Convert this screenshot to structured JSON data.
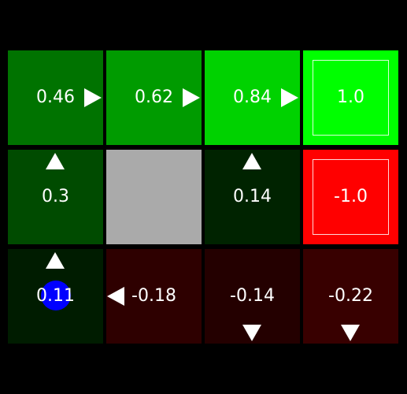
{
  "gridworld": {
    "rows": 3,
    "cols": 4,
    "agent": {
      "row": 2,
      "col": 0,
      "color": "#0000ff"
    },
    "cells": [
      {
        "row": 0,
        "col": 0,
        "value": "0.46",
        "policy": "right",
        "color": "#007300",
        "terminal": false,
        "wall": false
      },
      {
        "row": 0,
        "col": 1,
        "value": "0.62",
        "policy": "right",
        "color": "#009b00",
        "terminal": false,
        "wall": false
      },
      {
        "row": 0,
        "col": 2,
        "value": "0.84",
        "policy": "right",
        "color": "#00d200",
        "terminal": false,
        "wall": false
      },
      {
        "row": 0,
        "col": 3,
        "value": "1.0",
        "policy": null,
        "color": "#00ff00",
        "terminal": true,
        "wall": false
      },
      {
        "row": 1,
        "col": 0,
        "value": "0.3",
        "policy": "up",
        "color": "#004b00",
        "terminal": false,
        "wall": false
      },
      {
        "row": 1,
        "col": 1,
        "value": null,
        "policy": null,
        "color": "#aaaaaa",
        "terminal": false,
        "wall": true
      },
      {
        "row": 1,
        "col": 2,
        "value": "0.14",
        "policy": "up",
        "color": "#002300",
        "terminal": false,
        "wall": false
      },
      {
        "row": 1,
        "col": 3,
        "value": "-1.0",
        "policy": null,
        "color": "#ff0000",
        "terminal": true,
        "wall": false
      },
      {
        "row": 2,
        "col": 0,
        "value": "0.11",
        "policy": "up",
        "color": "#001c00",
        "terminal": false,
        "wall": false
      },
      {
        "row": 2,
        "col": 1,
        "value": "-0.18",
        "policy": "left",
        "color": "#2e0000",
        "terminal": false,
        "wall": false
      },
      {
        "row": 2,
        "col": 2,
        "value": "-0.14",
        "policy": "down",
        "color": "#240000",
        "terminal": false,
        "wall": false
      },
      {
        "row": 2,
        "col": 3,
        "value": "-0.22",
        "policy": "down",
        "color": "#380000",
        "terminal": false,
        "wall": false
      }
    ]
  }
}
